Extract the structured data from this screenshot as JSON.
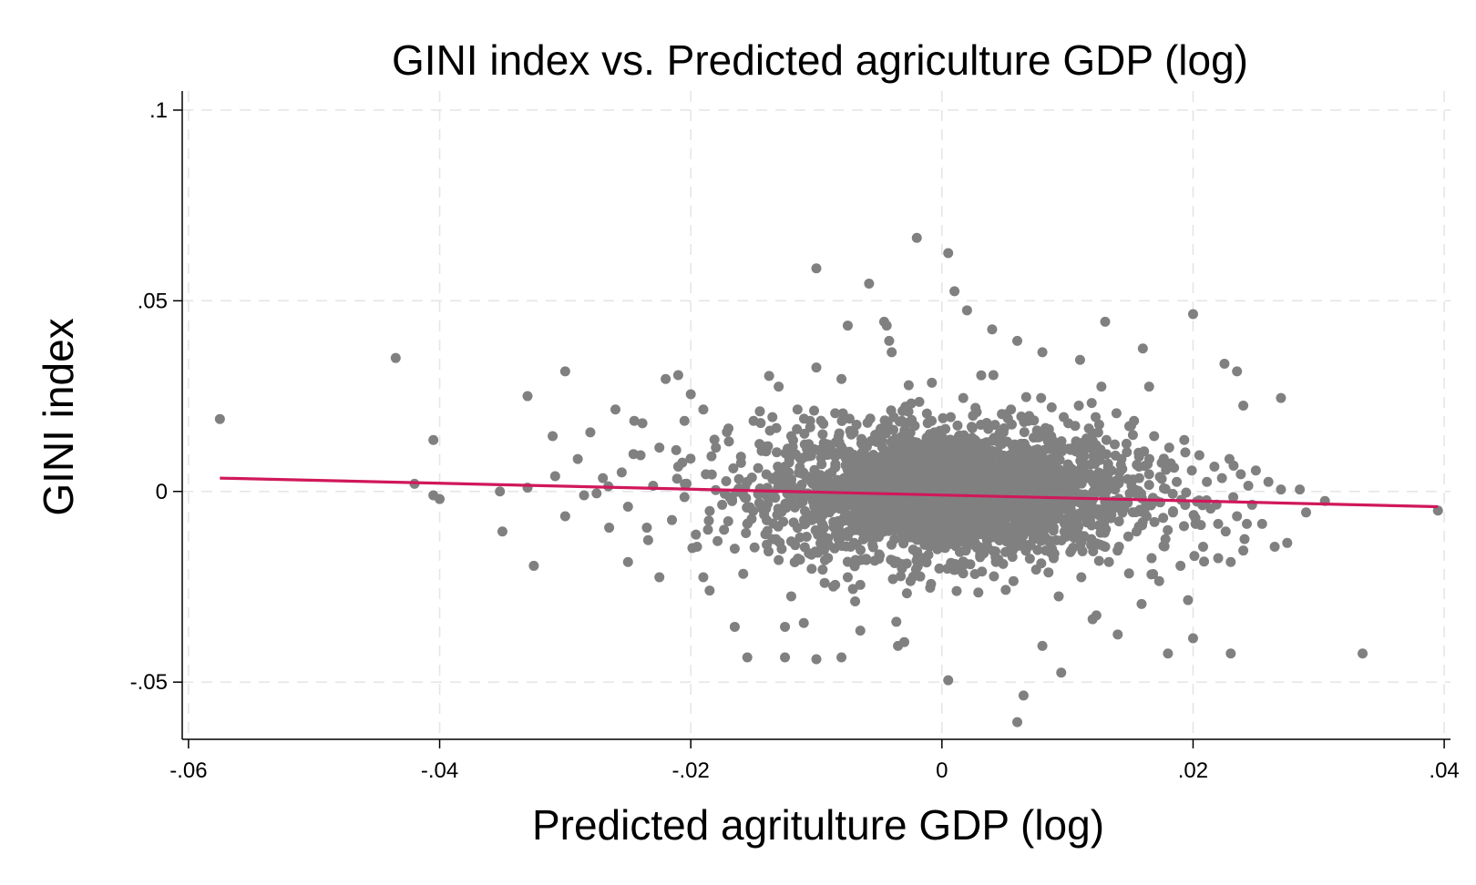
{
  "chart_data": {
    "type": "scatter",
    "title": "GINI index vs. Predicted agriculture GDP (log)",
    "xlabel": "Predicted agritulture GDP (log)",
    "ylabel": "GINI index",
    "xlim": [
      -0.0605,
      0.0405
    ],
    "ylim": [
      -0.065,
      0.105
    ],
    "xticks": [
      {
        "value": -0.06,
        "label": "-.06"
      },
      {
        "value": -0.04,
        "label": "-.04"
      },
      {
        "value": -0.02,
        "label": "-.02"
      },
      {
        "value": 0,
        "label": "0"
      },
      {
        "value": 0.02,
        "label": ".02"
      },
      {
        "value": 0.04,
        "label": ".04"
      }
    ],
    "yticks": [
      {
        "value": -0.05,
        "label": "-.05"
      },
      {
        "value": 0,
        "label": "0"
      },
      {
        "value": 0.05,
        "label": ".05"
      },
      {
        "value": 0.1,
        "label": ".1"
      }
    ],
    "grid": true,
    "legend": "none",
    "point_color": "#808080",
    "fit_color": "#d0185a",
    "fit_line": {
      "x": [
        -0.0575,
        0.0395
      ],
      "y": [
        0.0035,
        -0.004
      ]
    },
    "points": [
      [
        -0.0575,
        0.019
      ],
      [
        -0.0435,
        0.035
      ],
      [
        -0.0405,
        0.0135
      ],
      [
        -0.042,
        0.002
      ],
      [
        -0.0405,
        -0.001
      ],
      [
        -0.04,
        -0.002
      ],
      [
        -0.0352,
        0.0
      ],
      [
        -0.035,
        -0.0105
      ],
      [
        -0.033,
        0.025
      ],
      [
        -0.033,
        0.001
      ],
      [
        -0.0325,
        -0.0195
      ],
      [
        -0.031,
        0.0145
      ],
      [
        -0.0308,
        0.004
      ],
      [
        -0.03,
        -0.0065
      ],
      [
        -0.03,
        0.0315
      ],
      [
        -0.029,
        0.0085
      ],
      [
        -0.0285,
        -0.001
      ],
      [
        -0.028,
        0.0155
      ],
      [
        -0.0275,
        -0.0005
      ],
      [
        -0.027,
        0.0035
      ],
      [
        -0.0265,
        -0.0095
      ],
      [
        -0.026,
        0.0215
      ],
      [
        -0.0255,
        0.005
      ],
      [
        -0.025,
        -0.004
      ],
      [
        -0.025,
        -0.0185
      ],
      [
        -0.0245,
        0.0185
      ],
      [
        -0.024,
        0.0095
      ],
      [
        -0.0235,
        -0.0095
      ],
      [
        -0.023,
        0.0015
      ],
      [
        -0.0225,
        -0.0225
      ],
      [
        -0.0225,
        0.0115
      ],
      [
        -0.022,
        0.0295
      ],
      [
        -0.0215,
        -0.0075
      ],
      [
        -0.021,
        0.0065
      ],
      [
        -0.021,
        0.0305
      ],
      [
        -0.0205,
        -0.0015
      ],
      [
        -0.0205,
        0.0185
      ],
      [
        -0.02,
        0.0255
      ],
      [
        -0.0195,
        -0.0145
      ],
      [
        -0.019,
        0.0215
      ],
      [
        -0.019,
        -0.0225
      ],
      [
        -0.0188,
        0.0045
      ],
      [
        -0.0185,
        -0.026
      ],
      [
        -0.018,
        0.0115
      ],
      [
        -0.0175,
        -0.0035
      ],
      [
        -0.017,
        0.0165
      ],
      [
        -0.0165,
        -0.015
      ],
      [
        -0.016,
        0.0075
      ],
      [
        -0.0155,
        0.0025
      ],
      [
        -0.0155,
        -0.0085
      ],
      [
        -0.015,
        0.0185
      ],
      [
        -0.0145,
        0.021
      ],
      [
        -0.014,
        -0.0045
      ],
      [
        -0.014,
        0.0105
      ],
      [
        -0.0135,
        -0.0125
      ],
      [
        -0.0135,
        0.0195
      ],
      [
        -0.013,
        0.0275
      ],
      [
        -0.013,
        -0.018
      ],
      [
        -0.0125,
        0.0065
      ],
      [
        -0.012,
        -0.0275
      ],
      [
        -0.012,
        0.0145
      ],
      [
        -0.0115,
        -0.0095
      ],
      [
        -0.0115,
        0.0215
      ],
      [
        -0.011,
        -0.0345
      ],
      [
        -0.0108,
        0.004
      ],
      [
        -0.0105,
        0.0185
      ],
      [
        -0.01,
        -0.0035
      ],
      [
        -0.01,
        -0.044
      ],
      [
        -0.0095,
        0.015
      ],
      [
        -0.0095,
        -0.0205
      ],
      [
        -0.009,
        0.0045
      ],
      [
        -0.0085,
        -0.0245
      ],
      [
        -0.0085,
        0.0205
      ],
      [
        -0.008,
        0.0115
      ],
      [
        -0.008,
        -0.0435
      ],
      [
        -0.0078,
        0.0035
      ],
      [
        -0.0075,
        -0.0225
      ],
      [
        -0.0072,
        0.0095
      ],
      [
        -0.007,
        -0.0135
      ],
      [
        -0.0068,
        0.0175
      ],
      [
        -0.0065,
        -0.0245
      ],
      [
        -0.0062,
        0.0075
      ],
      [
        -0.006,
        -0.0065
      ],
      [
        -0.0058,
        0.0545
      ],
      [
        -0.0055,
        0.0045
      ],
      [
        -0.005,
        -0.0165
      ],
      [
        -0.0048,
        0.0135
      ],
      [
        -0.0046,
        0.0445
      ],
      [
        -0.0044,
        0.0435
      ],
      [
        -0.0042,
        0.0395
      ],
      [
        -0.004,
        0.0005
      ],
      [
        -0.004,
        0.0365
      ],
      [
        -0.0035,
        -0.0095
      ],
      [
        -0.0032,
        0.0185
      ],
      [
        -0.003,
        -0.0395
      ],
      [
        -0.0028,
        0.0055
      ],
      [
        -0.0025,
        -0.0235
      ],
      [
        -0.0022,
        0.0125
      ],
      [
        -0.002,
        -0.0025
      ],
      [
        -0.0018,
        0.0235
      ],
      [
        -0.0015,
        -0.0175
      ],
      [
        -0.0012,
        0.0075
      ],
      [
        -0.001,
        -0.0045
      ],
      [
        -0.0008,
        0.0285
      ],
      [
        -0.0006,
        0.0155
      ],
      [
        -0.0004,
        -0.0135
      ],
      [
        -0.0002,
        0.0035
      ],
      [
        0.0,
        -0.0055
      ],
      [
        0.0001,
        0.0065
      ],
      [
        0.0003,
        0.0125
      ],
      [
        0.0005,
        -0.0115
      ],
      [
        0.0007,
        0.0195
      ],
      [
        0.0009,
        0.0015
      ],
      [
        0.0011,
        -0.0205
      ],
      [
        0.0013,
        0.0095
      ],
      [
        0.0015,
        -0.0035
      ],
      [
        0.0017,
        0.0245
      ],
      [
        0.0019,
        -0.0155
      ],
      [
        0.0021,
        0.0045
      ],
      [
        0.0023,
        0.0135
      ],
      [
        0.0025,
        -0.0075
      ],
      [
        0.0027,
        0.0025
      ],
      [
        0.0029,
        -0.0265
      ],
      [
        0.0031,
        0.0175
      ],
      [
        0.0033,
        0.0065
      ],
      [
        0.0035,
        -0.0015
      ],
      [
        0.0037,
        -0.0125
      ],
      [
        0.0039,
        0.0105
      ],
      [
        0.0041,
        0.0305
      ],
      [
        0.0043,
        -0.0185
      ],
      [
        0.0045,
        0.0045
      ],
      [
        0.0047,
        -0.0055
      ],
      [
        0.0049,
        0.0155
      ],
      [
        0.0051,
        -0.0095
      ],
      [
        0.0053,
        0.0025
      ],
      [
        0.0055,
        0.0215
      ],
      [
        0.0057,
        -0.0235
      ],
      [
        0.0059,
        0.0075
      ],
      [
        0.0061,
        -0.0025
      ],
      [
        0.0063,
        0.0125
      ],
      [
        0.0065,
        -0.0145
      ],
      [
        0.0067,
        0.0035
      ],
      [
        0.0069,
        0.0185
      ],
      [
        0.0071,
        -0.0065
      ],
      [
        0.0073,
        0.0095
      ],
      [
        0.0075,
        -0.0205
      ],
      [
        0.0077,
        0.0015
      ],
      [
        0.0079,
        0.0245
      ],
      [
        0.0081,
        -0.0115
      ],
      [
        0.0083,
        0.0055
      ],
      [
        0.0085,
        -0.0035
      ],
      [
        0.0087,
        0.0145
      ],
      [
        0.0089,
        -0.0175
      ],
      [
        0.0091,
        0.0085
      ],
      [
        0.0093,
        -0.0275
      ],
      [
        0.0095,
        0.0025
      ],
      [
        0.0097,
        0.0195
      ],
      [
        0.0099,
        -0.0085
      ],
      [
        0.0101,
        0.0065
      ],
      [
        0.0103,
        -0.0155
      ],
      [
        0.0105,
        0.0115
      ],
      [
        0.0107,
        -0.0015
      ],
      [
        0.0109,
        0.0225
      ],
      [
        0.0111,
        -0.0225
      ],
      [
        0.0113,
        0.0045
      ],
      [
        0.0115,
        -0.0055
      ],
      [
        0.0117,
        0.0165
      ],
      [
        0.0119,
        -0.0125
      ],
      [
        0.0121,
        0.0095
      ],
      [
        0.0123,
        -0.0325
      ],
      [
        0.0125,
        0.0035
      ],
      [
        0.0127,
        0.0275
      ],
      [
        0.0129,
        -0.0085
      ],
      [
        0.0131,
        0.0135
      ],
      [
        0.0133,
        -0.0185
      ],
      [
        0.0135,
        0.0055
      ],
      [
        0.0137,
        -0.0025
      ],
      [
        0.0139,
        0.0205
      ],
      [
        0.0141,
        -0.0145
      ],
      [
        0.0143,
        0.0085
      ],
      [
        0.0145,
        -0.0045
      ],
      [
        0.0147,
        0.0125
      ],
      [
        0.0149,
        -0.0215
      ],
      [
        0.0151,
        0.0015
      ],
      [
        0.0153,
        0.0185
      ],
      [
        0.0155,
        -0.0105
      ],
      [
        0.0157,
        0.0065
      ],
      [
        0.0159,
        -0.0295
      ],
      [
        0.0161,
        0.0105
      ],
      [
        0.0163,
        -0.0065
      ],
      [
        0.0165,
        0.0045
      ],
      [
        0.0167,
        -0.0175
      ],
      [
        0.0169,
        0.0145
      ],
      [
        0.0171,
        -0.0025
      ],
      [
        0.0173,
        -0.0235
      ],
      [
        0.0175,
        0.0075
      ],
      [
        0.0178,
        -0.0125
      ],
      [
        0.0181,
        0.0115
      ],
      [
        0.0184,
        -0.0055
      ],
      [
        0.0187,
        0.0025
      ],
      [
        0.019,
        -0.0195
      ],
      [
        0.0193,
        0.0135
      ],
      [
        0.0196,
        -0.0285
      ],
      [
        0.0199,
        0.0055
      ],
      [
        0.0202,
        -0.0085
      ],
      [
        0.0205,
        0.0095
      ],
      [
        0.0208,
        -0.0145
      ],
      [
        0.0211,
        0.0025
      ],
      [
        0.0214,
        -0.0045
      ],
      [
        0.0217,
        0.0065
      ],
      [
        0.022,
        -0.0175
      ],
      [
        0.0223,
        0.0035
      ],
      [
        0.0226,
        -0.0105
      ],
      [
        0.0229,
        0.0085
      ],
      [
        0.0232,
        -0.0015
      ],
      [
        0.0235,
        -0.0065
      ],
      [
        0.0238,
        0.0045
      ],
      [
        0.0241,
        -0.0125
      ],
      [
        0.0244,
        0.0015
      ],
      [
        0.0247,
        -0.0035
      ],
      [
        0.025,
        0.0055
      ],
      [
        0.0255,
        -0.0085
      ],
      [
        0.026,
        0.0025
      ],
      [
        0.0265,
        -0.0145
      ],
      [
        0.027,
        0.0005
      ],
      [
        -0.002,
        0.0665
      ],
      [
        0.0005,
        0.0625
      ],
      [
        0.001,
        0.0525
      ],
      [
        0.002,
        0.0475
      ],
      [
        0.004,
        0.0425
      ],
      [
        0.006,
        0.0395
      ],
      [
        0.008,
        0.0365
      ],
      [
        0.011,
        0.0345
      ],
      [
        0.013,
        0.0445
      ],
      [
        0.0165,
        0.0275
      ],
      [
        0.016,
        0.0375
      ],
      [
        0.02,
        0.0465
      ],
      [
        0.0225,
        0.0335
      ],
      [
        0.0235,
        0.0315
      ],
      [
        0.024,
        0.0225
      ],
      [
        0.027,
        0.0245
      ],
      [
        0.0285,
        0.0005
      ],
      [
        0.0305,
        -0.0025
      ],
      [
        0.029,
        -0.0055
      ],
      [
        0.0275,
        -0.0135
      ],
      [
        0.0335,
        -0.0425
      ],
      [
        0.023,
        -0.0425
      ],
      [
        0.018,
        -0.0425
      ],
      [
        0.0095,
        -0.0475
      ],
      [
        0.0005,
        -0.0495
      ],
      [
        0.0065,
        -0.0535
      ],
      [
        0.006,
        -0.0605
      ],
      [
        -0.0035,
        -0.0405
      ],
      [
        -0.0065,
        -0.0365
      ],
      [
        -0.0125,
        -0.0435
      ],
      [
        -0.0155,
        -0.0435
      ],
      [
        -0.0165,
        -0.0355
      ],
      [
        -0.0125,
        -0.0355
      ],
      [
        0.012,
        -0.0335
      ],
      [
        0.014,
        -0.0375
      ],
      [
        0.02,
        -0.0385
      ],
      [
        0.008,
        -0.0405
      ],
      [
        0.023,
        -0.0185
      ],
      [
        0.024,
        -0.0155
      ],
      [
        0.022,
        -0.0085
      ],
      [
        0.0395,
        -0.005
      ],
      [
        -0.01,
        0.0585
      ],
      [
        -0.0075,
        0.0435
      ],
      [
        -0.01,
        0.0325
      ],
      [
        -0.008,
        0.0295
      ]
    ]
  }
}
